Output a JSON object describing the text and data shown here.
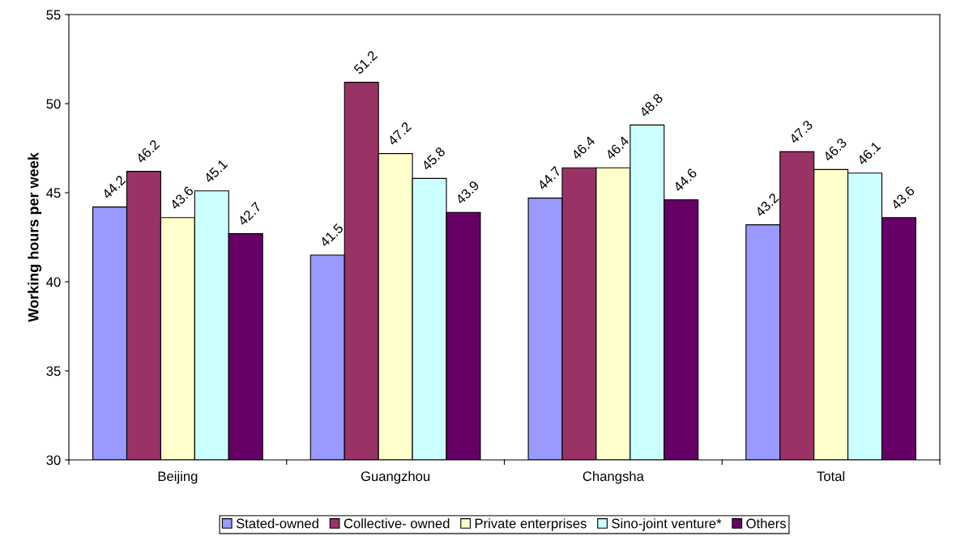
{
  "chart_data": {
    "type": "bar",
    "ylabel": "Working hours per week",
    "categories": [
      "Beijing",
      "Guangzhou",
      "Changsha",
      "Total"
    ],
    "series": [
      {
        "name": "Stated-owned",
        "color": "#9999ff",
        "values": [
          44.2,
          41.5,
          44.7,
          43.2
        ]
      },
      {
        "name": "Collective- owned",
        "color": "#993366",
        "values": [
          46.2,
          51.2,
          46.4,
          47.3
        ]
      },
      {
        "name": "Private enterprises",
        "color": "#ffffcc",
        "values": [
          43.6,
          47.2,
          46.4,
          46.3
        ]
      },
      {
        "name": "Sino-joint venture*",
        "color": "#ccffff",
        "values": [
          45.1,
          45.8,
          48.8,
          46.1
        ]
      },
      {
        "name": "Others",
        "color": "#660066",
        "values": [
          42.7,
          43.9,
          44.6,
          43.6
        ]
      }
    ],
    "ylim": [
      30,
      55
    ],
    "yticks": [
      30,
      35,
      40,
      45,
      50,
      55
    ],
    "grid": false,
    "legend": "bottom",
    "data_labels": true
  }
}
